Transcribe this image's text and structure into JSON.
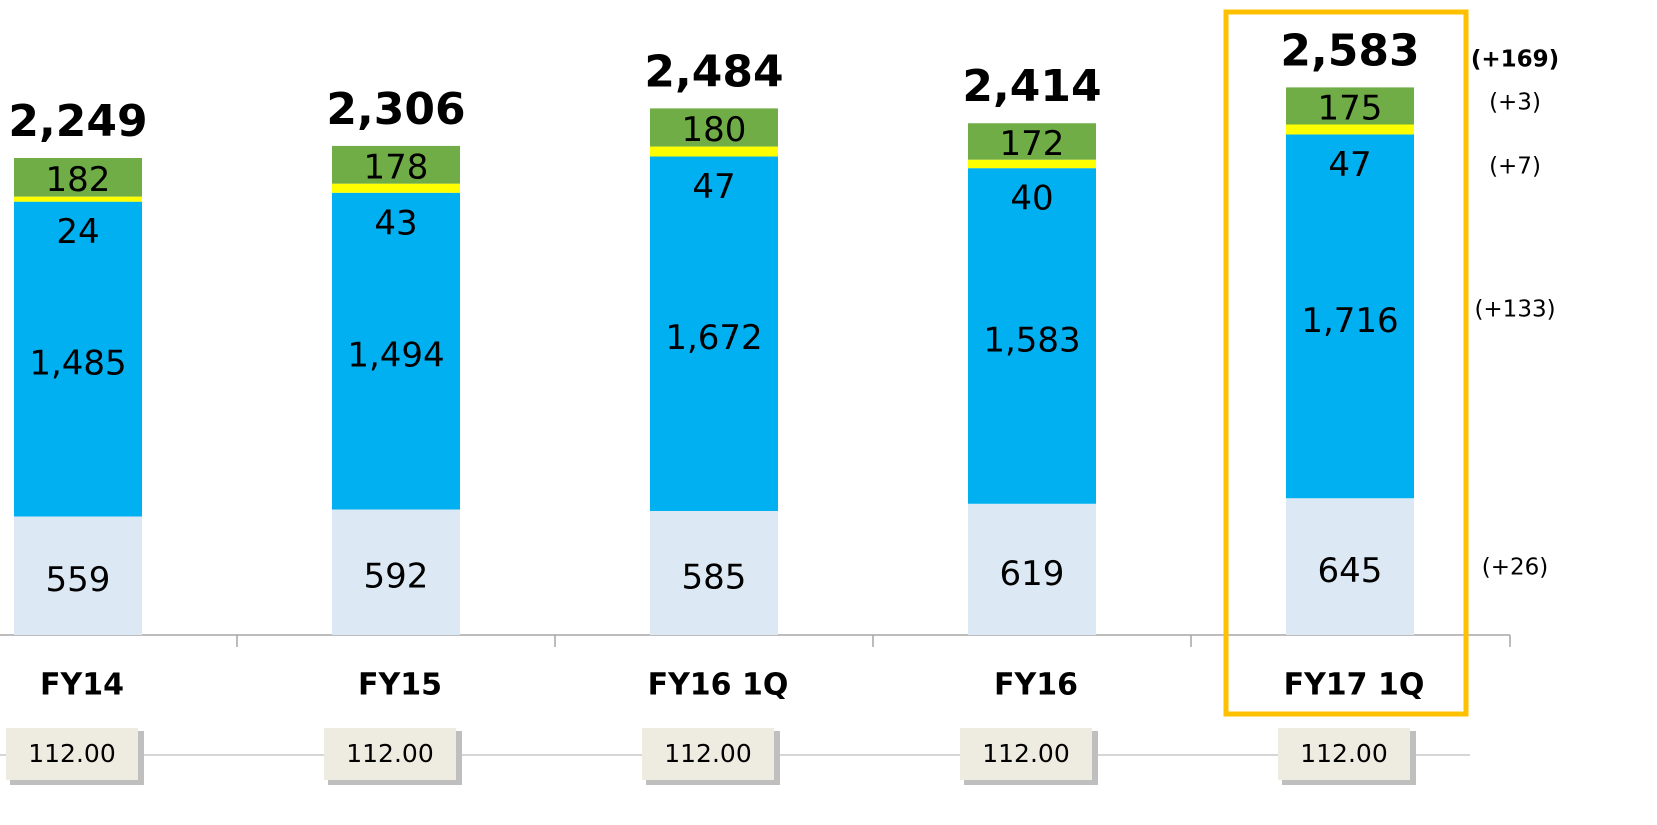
{
  "chart_data": {
    "type": "stacked-bar",
    "categories": [
      "FY14",
      "FY15",
      "FY16 1Q",
      "FY16",
      "FY17 1Q"
    ],
    "series": [
      {
        "color": "#dce9f5",
        "values": [
          559,
          592,
          585,
          619,
          645
        ]
      },
      {
        "color": "#00b0f0",
        "values": [
          1485,
          1494,
          1672,
          1583,
          1716
        ],
        "value_labels": [
          "1,485",
          "1,494",
          "1,672",
          "1,583",
          "1,716"
        ]
      },
      {
        "color": "#ffff00",
        "values": [
          24,
          43,
          47,
          40,
          47
        ]
      },
      {
        "color": "#70ad47",
        "values": [
          182,
          178,
          180,
          172,
          175
        ]
      }
    ],
    "totals": [
      2249,
      2306,
      2484,
      2414,
      2583
    ],
    "total_labels": [
      "2,249",
      "2,306",
      "2,484",
      "2,414",
      "2,583"
    ],
    "changes": [
      "(+169)",
      "(+3)",
      "(+7)",
      "(+133)",
      "(+26)"
    ],
    "rates": [
      "112.00",
      "112.00",
      "112.00",
      "112.00",
      "112.00"
    ]
  }
}
